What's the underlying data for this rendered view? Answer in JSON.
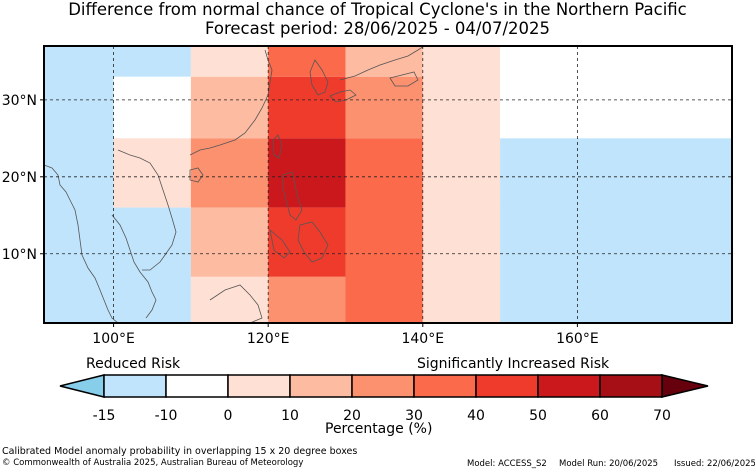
{
  "title": "Difference from normal chance of Tropical Cyclone's in the Northern Pacific",
  "subtitle": "Forecast period: 28/06/2025 - 04/07/2025",
  "lon_ticks": [
    "100°E",
    "120°E",
    "140°E",
    "160°E"
  ],
  "lat_ticks": [
    "30°N",
    "20°N",
    "10°N"
  ],
  "legend": {
    "left_label": "Reduced Risk",
    "right_label": "Significantly Increased Risk",
    "tick_labels": [
      "-15",
      "-10",
      "0",
      "10",
      "20",
      "30",
      "40",
      "50",
      "60",
      "70"
    ],
    "xlabel": "Percentage (%)",
    "colors": [
      "#87ceeb",
      "#bfe4fc",
      "#ffffff",
      "#ffe0d4",
      "#fdbba1",
      "#fc9170",
      "#fb6a4a",
      "#ef3b2c",
      "#cb181d",
      "#a50f15",
      "#67000d"
    ]
  },
  "footer": {
    "description": "Calibrated Model anomaly probability in overlapping 15 x 20 degree boxes",
    "copyright": "© Commonwealth of Australia 2025, Australian Bureau of Meteorology",
    "model": "Model: ACCESS_S2",
    "model_run": "Model Run: 20/06/2025",
    "issued": "Issued: 22/06/2025"
  },
  "map_extent": {
    "lon": [
      91,
      180
    ],
    "lat": [
      1,
      37
    ]
  },
  "map_cells": [
    {
      "lon0": 91,
      "lon1": 100,
      "lat0": 1,
      "lat1": 37,
      "value": -15
    },
    {
      "lon0": 100,
      "lon1": 110,
      "lat0": 33,
      "lat1": 37,
      "value": -15
    },
    {
      "lon0": 100,
      "lon1": 110,
      "lat0": 25,
      "lat1": 33,
      "value": -10
    },
    {
      "lon0": 100,
      "lon1": 110,
      "lat0": 16,
      "lat1": 25,
      "value": 0
    },
    {
      "lon0": 100,
      "lon1": 110,
      "lat0": 1,
      "lat1": 16,
      "value": -15
    },
    {
      "lon0": 110,
      "lon1": 120,
      "lat0": 33,
      "lat1": 37,
      "value": 5
    },
    {
      "lon0": 110,
      "lon1": 120,
      "lat0": 25,
      "lat1": 33,
      "value": 15
    },
    {
      "lon0": 110,
      "lon1": 120,
      "lat0": 16,
      "lat1": 25,
      "value": 25
    },
    {
      "lon0": 110,
      "lon1": 120,
      "lat0": 7,
      "lat1": 16,
      "value": 15
    },
    {
      "lon0": 110,
      "lon1": 120,
      "lat0": 1,
      "lat1": 7,
      "value": 0
    },
    {
      "lon0": 120,
      "lon1": 130,
      "lat0": 33,
      "lat1": 37,
      "value": 35
    },
    {
      "lon0": 120,
      "lon1": 130,
      "lat0": 25,
      "lat1": 33,
      "value": 45
    },
    {
      "lon0": 120,
      "lon1": 130,
      "lat0": 16,
      "lat1": 25,
      "value": 55
    },
    {
      "lon0": 120,
      "lon1": 130,
      "lat0": 7,
      "lat1": 16,
      "value": 45
    },
    {
      "lon0": 120,
      "lon1": 130,
      "lat0": 1,
      "lat1": 7,
      "value": 25
    },
    {
      "lon0": 130,
      "lon1": 140,
      "lat0": 33,
      "lat1": 37,
      "value": 15
    },
    {
      "lon0": 130,
      "lon1": 140,
      "lat0": 25,
      "lat1": 33,
      "value": 25
    },
    {
      "lon0": 130,
      "lon1": 140,
      "lat0": 1,
      "lat1": 25,
      "value": 35
    },
    {
      "lon0": 140,
      "lon1": 150,
      "lat0": 16,
      "lat1": 37,
      "value": 0
    },
    {
      "lon0": 140,
      "lon1": 150,
      "lat0": 1,
      "lat1": 16,
      "value": 5
    },
    {
      "lon0": 150,
      "lon1": 180,
      "lat0": 25,
      "lat1": 37,
      "value": -10
    },
    {
      "lon0": 150,
      "lon1": 180,
      "lat0": 1,
      "lat1": 25,
      "value": -15
    }
  ]
}
